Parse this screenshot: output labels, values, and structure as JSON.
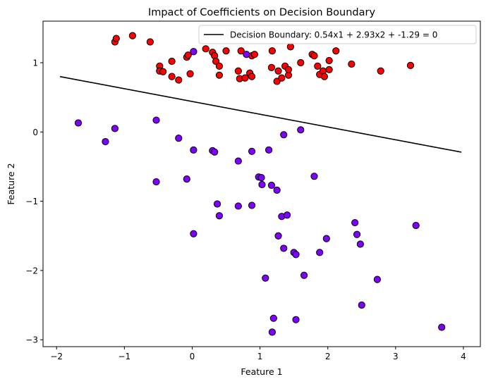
{
  "chart_data": {
    "type": "scatter",
    "title": "Impact of Coefficients on Decision Boundary",
    "xlabel": "Feature 1",
    "ylabel": "Feature 2",
    "xlim": [
      -2.2,
      4.25
    ],
    "ylim": [
      -3.1,
      1.6
    ],
    "xticks": [
      -2,
      -1,
      0,
      1,
      2,
      3,
      4
    ],
    "yticks": [
      -3,
      -2,
      -1,
      0,
      1
    ],
    "xtick_labels": [
      "−2",
      "−1",
      "0",
      "1",
      "2",
      "3",
      "4"
    ],
    "ytick_labels": [
      "−3",
      "−2",
      "−1",
      "0",
      "1"
    ],
    "grid": false,
    "legend_position": "top-right",
    "boundary": {
      "label": "Decision Boundary: 0.54x1 + 2.93x2 + -1.29 = 0",
      "w1": 0.54,
      "w2": 2.93,
      "b": -1.29,
      "x_range": [
        -1.95,
        3.97
      ],
      "color": "#000000"
    },
    "series": [
      {
        "class": 1,
        "color": "#ff0000",
        "points": [
          [
            -1.14,
            1.3
          ],
          [
            -1.12,
            1.35
          ],
          [
            -0.88,
            1.39
          ],
          [
            -0.62,
            1.3
          ],
          [
            -0.48,
            0.95
          ],
          [
            -0.48,
            0.88
          ],
          [
            -0.43,
            0.87
          ],
          [
            -0.3,
            1.02
          ],
          [
            -0.3,
            0.8
          ],
          [
            -0.2,
            0.75
          ],
          [
            -0.08,
            1.08
          ],
          [
            -0.06,
            1.11
          ],
          [
            -0.03,
            0.84
          ],
          [
            0.2,
            1.2
          ],
          [
            0.3,
            1.15
          ],
          [
            0.33,
            1.1
          ],
          [
            0.35,
            1.02
          ],
          [
            0.4,
            0.95
          ],
          [
            0.4,
            0.82
          ],
          [
            0.5,
            1.17
          ],
          [
            0.68,
            0.88
          ],
          [
            0.7,
            0.77
          ],
          [
            0.72,
            1.17
          ],
          [
            0.78,
            0.78
          ],
          [
            0.85,
            0.85
          ],
          [
            0.88,
            0.8
          ],
          [
            0.88,
            1.1
          ],
          [
            0.92,
            1.12
          ],
          [
            1.17,
            0.93
          ],
          [
            1.18,
            1.17
          ],
          [
            1.25,
            0.73
          ],
          [
            1.27,
            0.88
          ],
          [
            1.32,
            0.78
          ],
          [
            1.37,
            0.95
          ],
          [
            1.42,
            0.82
          ],
          [
            1.42,
            0.9
          ],
          [
            1.45,
            1.23
          ],
          [
            1.6,
            1.0
          ],
          [
            1.77,
            1.12
          ],
          [
            1.8,
            1.1
          ],
          [
            1.85,
            0.95
          ],
          [
            1.88,
            0.83
          ],
          [
            1.93,
            0.88
          ],
          [
            1.95,
            0.8
          ],
          [
            2.02,
            1.03
          ],
          [
            2.02,
            0.9
          ],
          [
            2.12,
            1.17
          ],
          [
            2.35,
            0.98
          ],
          [
            2.78,
            0.88
          ],
          [
            3.22,
            0.96
          ]
        ]
      },
      {
        "class": 0,
        "color": "#7f00ff",
        "points": [
          [
            -1.68,
            0.13
          ],
          [
            -1.28,
            -0.14
          ],
          [
            -1.14,
            0.05
          ],
          [
            -0.53,
            0.17
          ],
          [
            -0.53,
            -0.72
          ],
          [
            -0.2,
            -0.09
          ],
          [
            -0.08,
            -0.68
          ],
          [
            0.02,
            -0.26
          ],
          [
            0.02,
            -1.47
          ],
          [
            0.3,
            -0.27
          ],
          [
            0.33,
            -0.29
          ],
          [
            0.37,
            -1.04
          ],
          [
            0.4,
            -1.21
          ],
          [
            0.68,
            -0.42
          ],
          [
            0.68,
            -1.07
          ],
          [
            0.88,
            -0.28
          ],
          [
            0.88,
            -1.06
          ],
          [
            0.98,
            -0.65
          ],
          [
            1.02,
            -0.66
          ],
          [
            1.03,
            -0.76
          ],
          [
            1.08,
            -2.11
          ],
          [
            1.13,
            -0.26
          ],
          [
            1.17,
            -0.77
          ],
          [
            1.2,
            -2.69
          ],
          [
            1.18,
            -2.89
          ],
          [
            1.25,
            -0.84
          ],
          [
            1.27,
            -1.5
          ],
          [
            1.32,
            -1.22
          ],
          [
            1.35,
            -1.68
          ],
          [
            1.35,
            -0.04
          ],
          [
            1.4,
            -1.2
          ],
          [
            1.5,
            -1.74
          ],
          [
            1.53,
            -1.77
          ],
          [
            1.53,
            -2.71
          ],
          [
            1.6,
            0.03
          ],
          [
            1.65,
            -2.07
          ],
          [
            1.8,
            -0.64
          ],
          [
            1.88,
            -1.74
          ],
          [
            1.98,
            -1.54
          ],
          [
            2.4,
            -1.31
          ],
          [
            2.43,
            -1.48
          ],
          [
            2.48,
            -1.62
          ],
          [
            2.5,
            -2.5
          ],
          [
            2.73,
            -2.13
          ],
          [
            3.3,
            -1.35
          ],
          [
            3.68,
            -2.82
          ],
          [
            0.02,
            1.16
          ],
          [
            0.8,
            1.12
          ]
        ]
      }
    ]
  }
}
